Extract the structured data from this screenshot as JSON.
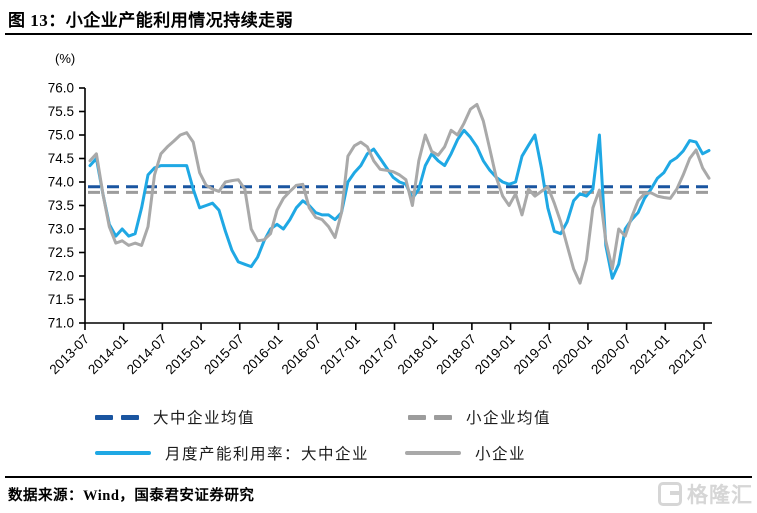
{
  "title": "图 13：小企业产能利用情况持续走弱",
  "source_note": "数据来源：Wind，国泰君安证券研究",
  "watermark": {
    "text": "格隆汇"
  },
  "chart_data": {
    "type": "line",
    "unit_label": "(%)",
    "ylim": [
      71.0,
      76.0
    ],
    "ytick_step": 0.5,
    "ytick_labels": [
      "76.0",
      "75.5",
      "75.0",
      "74.5",
      "74.0",
      "73.5",
      "73.0",
      "72.5",
      "72.0",
      "71.5",
      "71.0"
    ],
    "xtick_labels": [
      "2013-07",
      "2014-01",
      "2014-07",
      "2015-01",
      "2015-07",
      "2016-01",
      "2016-07",
      "2017-01",
      "2017-07",
      "2018-01",
      "2018-07",
      "2019-01",
      "2019-07",
      "2020-01",
      "2020-07",
      "2021-01",
      "2021-07"
    ],
    "grid": false,
    "legend_position": "bottom",
    "x_months": [
      "2013-07",
      "2013-08",
      "2013-09",
      "2013-10",
      "2013-11",
      "2013-12",
      "2014-01",
      "2014-02",
      "2014-03",
      "2014-04",
      "2014-05",
      "2014-06",
      "2014-07",
      "2014-08",
      "2014-09",
      "2014-10",
      "2014-11",
      "2014-12",
      "2015-01",
      "2015-02",
      "2015-03",
      "2015-04",
      "2015-05",
      "2015-06",
      "2015-07",
      "2015-08",
      "2015-09",
      "2015-10",
      "2015-11",
      "2015-12",
      "2016-01",
      "2016-02",
      "2016-03",
      "2016-04",
      "2016-05",
      "2016-06",
      "2016-07",
      "2016-08",
      "2016-09",
      "2016-10",
      "2016-11",
      "2016-12",
      "2017-01",
      "2017-02",
      "2017-03",
      "2017-04",
      "2017-05",
      "2017-06",
      "2017-07",
      "2017-08",
      "2017-09",
      "2017-10",
      "2017-11",
      "2017-12",
      "2018-01",
      "2018-02",
      "2018-03",
      "2018-04",
      "2018-05",
      "2018-06",
      "2018-07",
      "2018-08",
      "2018-09",
      "2018-10",
      "2018-11",
      "2018-12",
      "2019-01",
      "2019-02",
      "2019-03",
      "2019-04",
      "2019-05",
      "2019-06",
      "2019-07",
      "2019-08",
      "2019-09",
      "2019-10",
      "2019-11",
      "2019-12",
      "2020-01",
      "2020-02",
      "2020-03",
      "2020-04",
      "2020-05",
      "2020-06",
      "2020-07",
      "2020-08",
      "2020-09",
      "2020-10",
      "2020-11",
      "2020-12",
      "2021-01",
      "2021-02",
      "2021-03",
      "2021-04",
      "2021-05",
      "2021-06",
      "2021-07"
    ],
    "series": [
      {
        "name": "月度产能利用率：大中企业",
        "color": "#1fa8e4",
        "style": "solid",
        "values": [
          74.35,
          74.5,
          73.75,
          73.1,
          72.85,
          73.0,
          72.85,
          72.9,
          73.45,
          74.15,
          74.3,
          74.35,
          74.35,
          74.35,
          74.35,
          74.35,
          73.85,
          73.45,
          73.5,
          73.55,
          73.4,
          72.95,
          72.55,
          72.3,
          72.25,
          72.2,
          72.4,
          72.75,
          73.0,
          73.1,
          73.0,
          73.2,
          73.45,
          73.6,
          73.5,
          73.35,
          73.3,
          73.3,
          73.2,
          73.35,
          74.0,
          74.2,
          74.35,
          74.6,
          74.7,
          74.5,
          74.3,
          74.1,
          74.0,
          73.95,
          73.65,
          73.85,
          74.35,
          74.6,
          74.45,
          74.35,
          74.6,
          74.9,
          75.1,
          74.95,
          74.75,
          74.45,
          74.25,
          74.1,
          74.0,
          73.95,
          74.0,
          74.55,
          74.78,
          75.0,
          74.3,
          73.45,
          72.95,
          72.9,
          73.15,
          73.6,
          73.75,
          73.7,
          73.85,
          75.0,
          72.65,
          71.95,
          72.25,
          73.0,
          73.2,
          73.35,
          73.65,
          73.85,
          74.08,
          74.2,
          74.43,
          74.52,
          74.66,
          74.88,
          74.85,
          74.6,
          74.67
        ]
      },
      {
        "name": "小企业",
        "color": "#a9a9a9",
        "style": "solid",
        "values": [
          74.45,
          74.6,
          73.75,
          73.05,
          72.7,
          72.75,
          72.65,
          72.7,
          72.65,
          73.05,
          74.15,
          74.6,
          74.75,
          74.87,
          75.0,
          75.05,
          74.85,
          74.2,
          73.93,
          73.85,
          73.8,
          74.0,
          74.03,
          74.05,
          73.85,
          73.0,
          72.75,
          72.77,
          72.9,
          73.4,
          73.65,
          73.8,
          73.93,
          73.95,
          73.45,
          73.25,
          73.2,
          73.05,
          72.82,
          73.35,
          74.55,
          74.77,
          74.85,
          74.75,
          74.45,
          74.27,
          74.25,
          74.22,
          74.15,
          74.05,
          73.5,
          74.45,
          75.0,
          74.65,
          74.57,
          74.75,
          75.1,
          75.0,
          75.25,
          75.55,
          75.65,
          75.3,
          74.7,
          74.1,
          73.7,
          73.5,
          73.75,
          73.3,
          73.85,
          73.7,
          73.8,
          73.9,
          73.55,
          73.15,
          72.65,
          72.15,
          71.85,
          72.35,
          73.45,
          73.83,
          72.75,
          72.15,
          73.0,
          72.85,
          73.25,
          73.6,
          73.75,
          73.77,
          73.7,
          73.67,
          73.65,
          73.85,
          74.15,
          74.5,
          74.68,
          74.3,
          74.08
        ]
      }
    ],
    "mean_lines": [
      {
        "name": "大中企业均值",
        "value": 73.9,
        "color": "#1a55a0",
        "style": "dashed"
      },
      {
        "name": "小企业均值",
        "value": 73.78,
        "color": "#9c9c9c",
        "style": "dashed"
      }
    ],
    "legend": {
      "row1": [
        {
          "label": "大中企业均值",
          "swatch": "dash",
          "color": "#1a55a0"
        },
        {
          "label": "小企业均值",
          "swatch": "dash",
          "color": "#9c9c9c"
        }
      ],
      "row2": [
        {
          "label": "月度产能利用率：大中企业",
          "swatch": "line",
          "color": "#1fa8e4"
        },
        {
          "label": "小企业",
          "swatch": "line",
          "color": "#a9a9a9"
        }
      ]
    }
  }
}
